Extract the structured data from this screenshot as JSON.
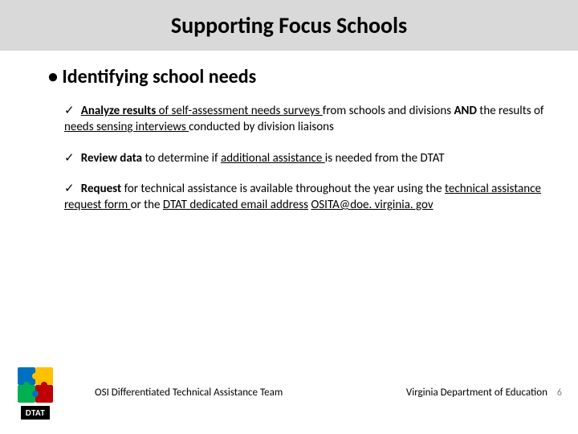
{
  "title": "Supporting Focus Schools",
  "main_bullet": "• Identifying school needs",
  "items": [
    {
      "check": "✓",
      "parts": [
        {
          "t": "Analyze results ",
          "b": true,
          "u": true
        },
        {
          "t": "of ",
          "u": true
        },
        {
          "t": "self-assessment needs surveys ",
          "u": true
        },
        {
          "t": "from schools and divisions "
        },
        {
          "t": "AND ",
          "b": true
        },
        {
          "t": "the results of "
        },
        {
          "t": "needs sensing interviews ",
          "u": true
        },
        {
          "t": "conducted by division liaisons"
        }
      ]
    },
    {
      "check": "✓",
      "parts": [
        {
          "t": "Review data ",
          "b": true
        },
        {
          "t": "to determine if "
        },
        {
          "t": "additional assistance ",
          "u": true
        },
        {
          "t": "is needed from the DTAT"
        }
      ]
    },
    {
      "check": "✓",
      "parts": [
        {
          "t": "Request ",
          "b": true
        },
        {
          "t": "for technical assistance is available throughout the year using the "
        },
        {
          "t": "technical assistance request form ",
          "u": true
        },
        {
          "t": "or the "
        },
        {
          "t": "DTAT dedicated email address",
          "u": true
        },
        {
          "t": " "
        },
        {
          "t": "OSITA@doe. virginia. gov",
          "u": true,
          "link": true
        }
      ]
    }
  ],
  "logo_label": "DTAT",
  "footer_left": "OSI Differentiated Technical Assistance Team",
  "footer_right": "Virginia Department of Education",
  "slide_number": "6",
  "puzzle_colors": {
    "tl": "#0070c0",
    "tr": "#ffc000",
    "bl": "#00b050",
    "br": "#c00000"
  }
}
